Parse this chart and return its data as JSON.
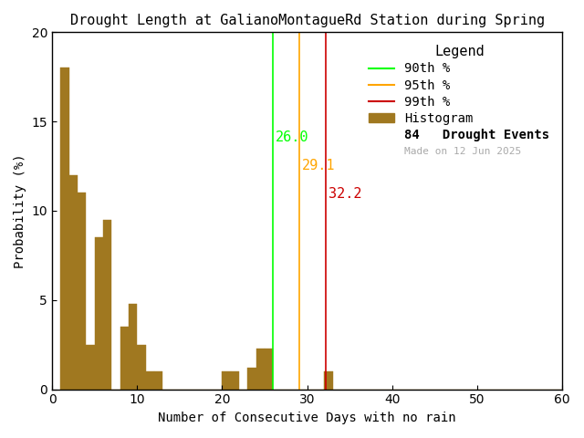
{
  "title": "Drought Length at GalianoMontagueRd Station during Spring",
  "xlabel": "Number of Consecutive Days with no rain",
  "ylabel": "Probability (%)",
  "xlim": [
    0,
    60
  ],
  "ylim": [
    0,
    20
  ],
  "bar_color": "#A07820",
  "bar_edgecolor": "#A07820",
  "percentile_90": 26.0,
  "percentile_95": 29.1,
  "percentile_99": 32.2,
  "line_90_color": "#00FF00",
  "line_95_color": "#FFA500",
  "line_99_color": "#CC0000",
  "drought_events": 84,
  "made_on": "Made on 12 Jun 2025",
  "made_on_color": "#AAAAAA",
  "bin_width": 1,
  "bins_start": 1,
  "bar_heights": [
    18.0,
    12.0,
    11.0,
    2.5,
    8.5,
    9.5,
    0.0,
    3.5,
    4.8,
    2.5,
    1.0,
    1.0,
    0.0,
    0.0,
    0.0,
    0.0,
    0.0,
    0.0,
    0.0,
    1.0,
    1.0,
    0.0,
    1.2,
    2.3,
    2.3,
    0.0,
    0.0,
    0.0,
    0.0,
    0.0,
    0.0,
    1.0,
    0.0,
    0.0,
    0.0,
    0.0,
    0.0,
    0.0,
    0.0,
    0.0,
    0.0,
    0.0,
    0.0,
    0.0,
    0.0,
    0.0,
    0.0,
    0.0,
    0.0,
    0.0,
    0.0,
    0.0,
    0.0,
    0.0,
    0.0,
    0.0,
    0.0,
    0.0,
    0.0
  ],
  "xticks": [
    0,
    10,
    20,
    30,
    40,
    50,
    60
  ],
  "yticks": [
    0,
    5,
    10,
    15,
    20
  ],
  "background_color": "#FFFFFF",
  "font_family": "monospace",
  "title_fontsize": 11,
  "label_fontsize": 10,
  "tick_fontsize": 10,
  "legend_fontsize": 10,
  "annotation_fontsize": 11
}
